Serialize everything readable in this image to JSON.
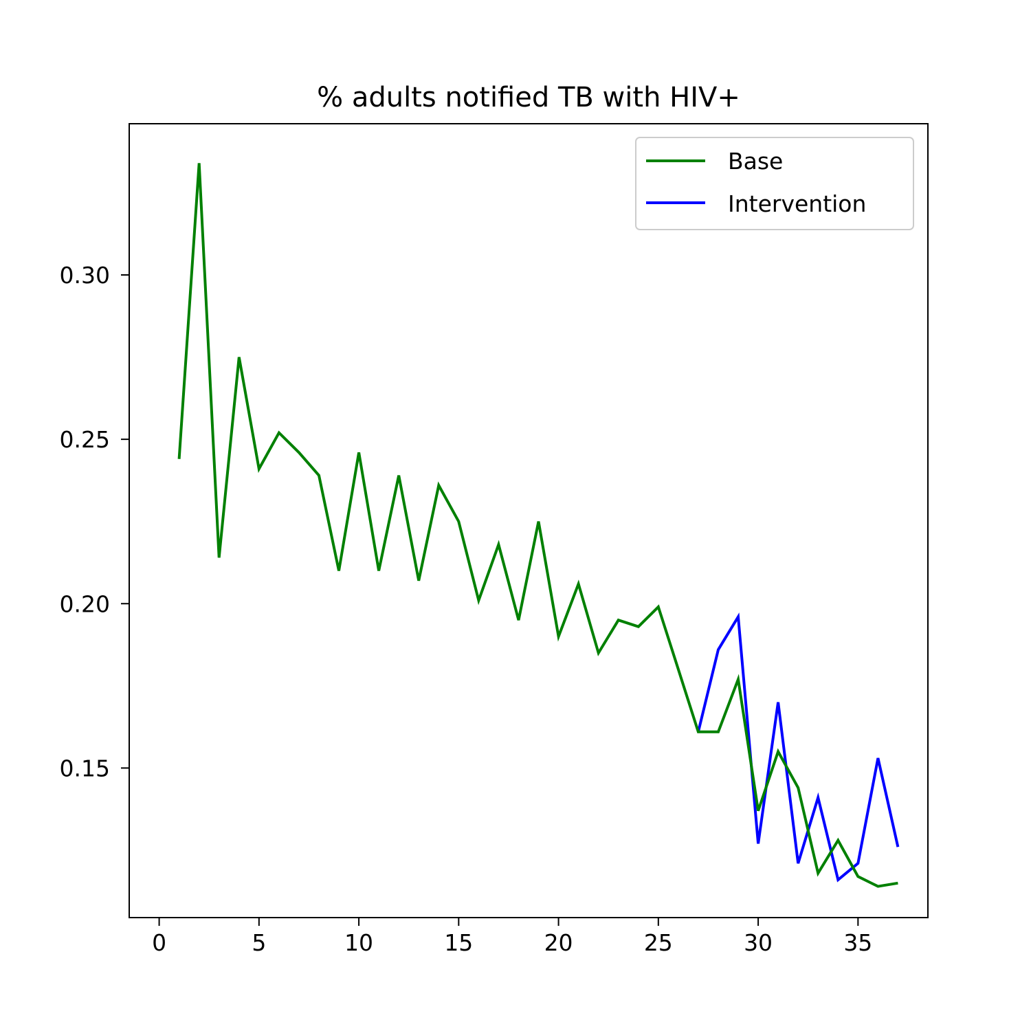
{
  "chart_data": {
    "type": "line",
    "title": "% adults notified TB with HIV+",
    "xlabel": "",
    "ylabel": "",
    "xlim": [
      -1.5,
      38.5
    ],
    "ylim": [
      0.1045,
      0.346
    ],
    "xticks": [
      0,
      5,
      10,
      15,
      20,
      25,
      30,
      35
    ],
    "yticks": [
      0.15,
      0.2,
      0.25,
      0.3
    ],
    "ytick_labels": [
      "0.15",
      "0.20",
      "0.25",
      "0.30"
    ],
    "grid": false,
    "legend_position": "top-right",
    "series": [
      {
        "name": "Base",
        "color": "#008000",
        "x": [
          1,
          2,
          3,
          4,
          5,
          6,
          7,
          8,
          9,
          10,
          11,
          12,
          13,
          14,
          15,
          16,
          17,
          18,
          19,
          20,
          21,
          22,
          23,
          24,
          25,
          26,
          27,
          28,
          29,
          30,
          31,
          32,
          33,
          34,
          35,
          36,
          37
        ],
        "values": [
          0.244,
          0.334,
          0.214,
          0.275,
          0.241,
          0.252,
          0.246,
          0.239,
          0.21,
          0.246,
          0.21,
          0.239,
          0.207,
          0.236,
          0.225,
          0.201,
          0.218,
          0.195,
          0.225,
          0.19,
          0.206,
          0.185,
          0.195,
          0.193,
          0.199,
          0.18,
          0.161,
          0.161,
          0.177,
          0.137,
          0.155,
          0.144,
          0.118,
          0.128,
          0.117,
          0.114,
          0.115
        ]
      },
      {
        "name": "Intervention",
        "color": "#0000ff",
        "x": [
          27,
          28,
          29,
          30,
          31,
          32,
          33,
          34,
          35,
          36,
          37
        ],
        "values": [
          0.161,
          0.186,
          0.196,
          0.127,
          0.17,
          0.121,
          0.141,
          0.116,
          0.121,
          0.153,
          0.126
        ]
      }
    ]
  }
}
